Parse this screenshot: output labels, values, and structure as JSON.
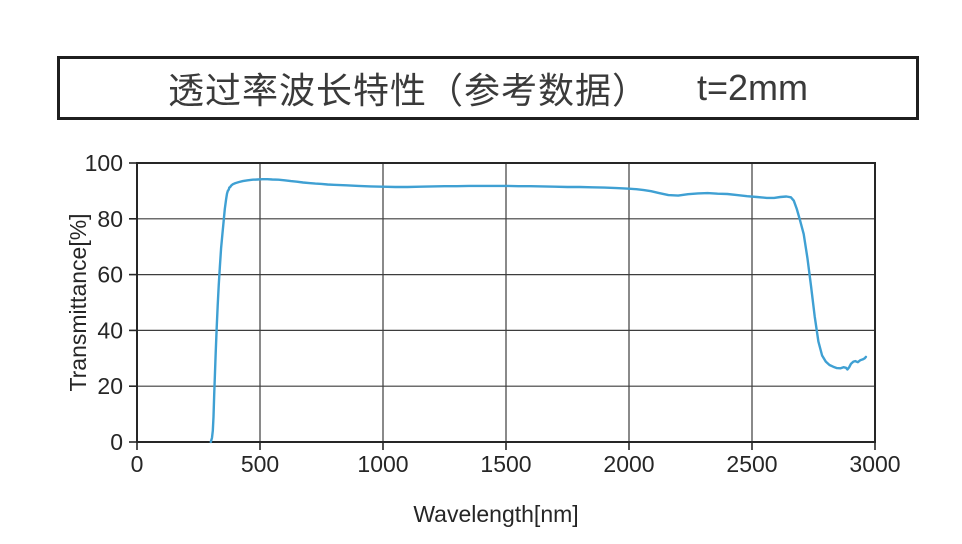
{
  "title": {
    "text": "透过率波长特性（参考数据）",
    "thickness": "t=2mm"
  },
  "chart_data": {
    "type": "line",
    "title": "透过率波长特性（参考数据） t=2mm",
    "xlabel": "Wavelength[nm]",
    "ylabel": "Transmittance[%]",
    "xlim": [
      0,
      3000
    ],
    "ylim": [
      0,
      100
    ],
    "x_ticks": [
      0,
      500,
      1000,
      1500,
      2000,
      2500,
      3000
    ],
    "y_ticks": [
      0,
      20,
      40,
      60,
      80,
      100
    ],
    "grid": true,
    "legend": "none",
    "colors": {
      "line": "#3fa0d3",
      "grid": "#3d3d3d",
      "border": "#262626",
      "text": "#262626"
    },
    "series": [
      {
        "name": "transmittance",
        "points": [
          [
            300,
            0
          ],
          [
            305,
            1.5
          ],
          [
            308,
            4
          ],
          [
            311,
            9
          ],
          [
            314,
            17
          ],
          [
            317,
            25
          ],
          [
            320,
            32
          ],
          [
            324,
            41
          ],
          [
            328,
            49
          ],
          [
            332,
            56
          ],
          [
            337,
            63
          ],
          [
            342,
            69.5
          ],
          [
            347,
            74.5
          ],
          [
            352,
            79
          ],
          [
            357,
            83.5
          ],
          [
            362,
            87
          ],
          [
            366,
            89
          ],
          [
            369,
            90
          ],
          [
            371,
            90.2
          ],
          [
            373,
            90.5
          ],
          [
            375,
            91.2
          ],
          [
            379,
            91.4
          ],
          [
            383,
            91.9
          ],
          [
            390,
            92.4
          ],
          [
            400,
            92.8
          ],
          [
            415,
            93.2
          ],
          [
            430,
            93.5
          ],
          [
            450,
            93.8
          ],
          [
            470,
            94.0
          ],
          [
            490,
            94.1
          ],
          [
            510,
            94.2
          ],
          [
            530,
            94.2
          ],
          [
            550,
            94.1
          ],
          [
            575,
            94.0
          ],
          [
            600,
            93.8
          ],
          [
            625,
            93.5
          ],
          [
            650,
            93.3
          ],
          [
            675,
            93.0
          ],
          [
            700,
            92.8
          ],
          [
            725,
            92.6
          ],
          [
            750,
            92.5
          ],
          [
            775,
            92.3
          ],
          [
            800,
            92.2
          ],
          [
            850,
            92.0
          ],
          [
            900,
            91.8
          ],
          [
            950,
            91.6
          ],
          [
            1000,
            91.5
          ],
          [
            1050,
            91.4
          ],
          [
            1100,
            91.4
          ],
          [
            1150,
            91.5
          ],
          [
            1200,
            91.6
          ],
          [
            1250,
            91.7
          ],
          [
            1300,
            91.7
          ],
          [
            1350,
            91.8
          ],
          [
            1400,
            91.8
          ],
          [
            1450,
            91.8
          ],
          [
            1500,
            91.8
          ],
          [
            1550,
            91.7
          ],
          [
            1600,
            91.7
          ],
          [
            1650,
            91.6
          ],
          [
            1700,
            91.5
          ],
          [
            1750,
            91.4
          ],
          [
            1800,
            91.4
          ],
          [
            1850,
            91.3
          ],
          [
            1900,
            91.2
          ],
          [
            1950,
            91.0
          ],
          [
            2000,
            90.8
          ],
          [
            2030,
            90.6
          ],
          [
            2060,
            90.3
          ],
          [
            2090,
            89.9
          ],
          [
            2120,
            89.3
          ],
          [
            2160,
            88.5
          ],
          [
            2200,
            88.3
          ],
          [
            2240,
            88.8
          ],
          [
            2280,
            89.1
          ],
          [
            2320,
            89.2
          ],
          [
            2360,
            89.0
          ],
          [
            2400,
            88.9
          ],
          [
            2440,
            88.5
          ],
          [
            2480,
            88.1
          ],
          [
            2520,
            87.8
          ],
          [
            2560,
            87.5
          ],
          [
            2590,
            87.5
          ],
          [
            2615,
            87.8
          ],
          [
            2640,
            88.0
          ],
          [
            2658,
            87.7
          ],
          [
            2670,
            86.5
          ],
          [
            2682,
            83.5
          ],
          [
            2695,
            79.5
          ],
          [
            2710,
            74.5
          ],
          [
            2725,
            66
          ],
          [
            2740,
            56
          ],
          [
            2755,
            45
          ],
          [
            2770,
            36
          ],
          [
            2785,
            31
          ],
          [
            2800,
            28.8
          ],
          [
            2815,
            27.6
          ],
          [
            2830,
            27.0
          ],
          [
            2845,
            26.5
          ],
          [
            2860,
            26.4
          ],
          [
            2872,
            26.8
          ],
          [
            2882,
            26.6
          ],
          [
            2888,
            26.0
          ],
          [
            2895,
            26.8
          ],
          [
            2902,
            28.0
          ],
          [
            2912,
            28.8
          ],
          [
            2920,
            29.0
          ],
          [
            2930,
            28.6
          ],
          [
            2940,
            29.3
          ],
          [
            2950,
            29.6
          ],
          [
            2958,
            30.0
          ],
          [
            2963,
            30.5
          ]
        ]
      }
    ]
  }
}
